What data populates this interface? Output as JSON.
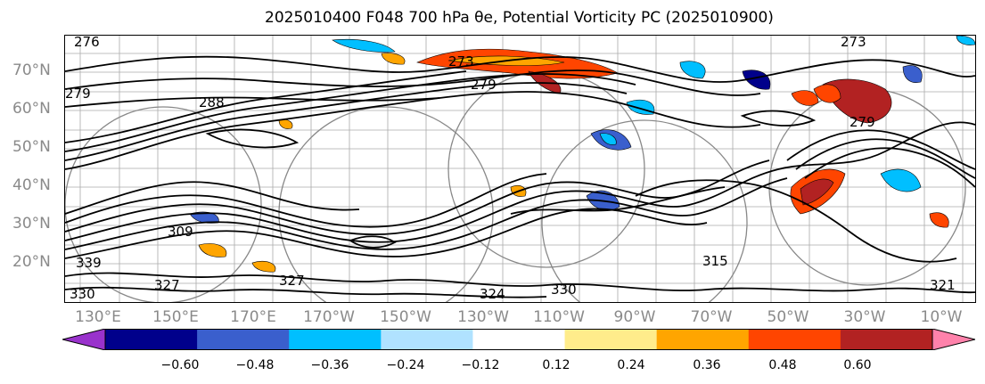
{
  "title": "2025010400 F048 700 hPa θe, Potential Vorticity PC (2025010900)",
  "lat_labels": [
    "70°N",
    "60°N",
    "50°N",
    "40°N",
    "30°N",
    "20°N"
  ],
  "lon_labels": [
    "130°E",
    "150°E",
    "170°E",
    "170°W",
    "150°W",
    "130°W",
    "110°W",
    "90°W",
    "70°W",
    "50°W",
    "30°W",
    "10°W"
  ],
  "contour_labels": [
    "276",
    "279",
    "273",
    "279",
    "288",
    "273",
    "279",
    "309",
    "327",
    "324",
    "330",
    "327",
    "330",
    "315",
    "339",
    "321"
  ],
  "colorbar": {
    "ticks": [
      "−0.60",
      "−0.48",
      "−0.36",
      "−0.24",
      "−0.12",
      "0.12",
      "0.24",
      "0.36",
      "0.48",
      "0.60"
    ],
    "colors": [
      "#9932cc",
      "#00008b",
      "#3a5fcd",
      "#00bfff",
      "#b0e2ff",
      "#ffffff",
      "#ffec8b",
      "#ffa500",
      "#ff4500",
      "#b22222",
      "#ff82ab"
    ]
  }
}
